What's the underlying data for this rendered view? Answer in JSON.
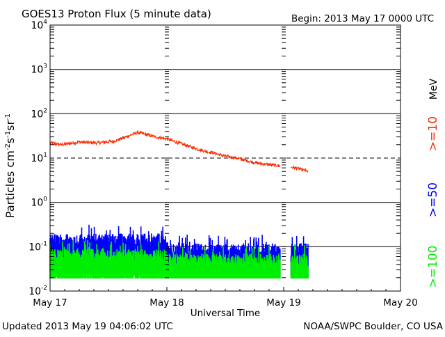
{
  "chart_data": {
    "type": "line",
    "title": "GOES13 Proton Flux (5 minute data)",
    "begin_label": "Begin: 2013 May 17 0000 UTC",
    "ylabel_html": "Particles cm⁻²s⁻¹sr⁻¹",
    "xlabel": "Universal Time",
    "footer_left": "Updated 2013 May 19 04:06:02 UTC",
    "footer_right": "NOAA/SWPC Boulder, CO USA",
    "mev_label": "MeV",
    "x_ticks": [
      "May 17",
      "May 18",
      "May 19",
      "May 20"
    ],
    "x_range_days": [
      0,
      3
    ],
    "y_log_range": [
      -2,
      4
    ],
    "y_ticks": [
      {
        "base": "10",
        "exp": "4"
      },
      {
        "base": "10",
        "exp": "3"
      },
      {
        "base": "10",
        "exp": "2"
      },
      {
        "base": "10",
        "exp": "1"
      },
      {
        "base": "10",
        "exp": "0"
      },
      {
        "base": "10",
        "exp": "-1"
      },
      {
        "base": "10",
        "exp": "-2"
      }
    ],
    "threshold_line": 10,
    "data_gap_days": [
      2.0,
      2.06
    ],
    "data_end_days": 2.21,
    "series": [
      {
        "name": ">=10",
        "color": "#ff2a00",
        "keypoints": [
          [
            0,
            22
          ],
          [
            0.1,
            20
          ],
          [
            0.25,
            23
          ],
          [
            0.4,
            22
          ],
          [
            0.55,
            24
          ],
          [
            0.65,
            30
          ],
          [
            0.75,
            38
          ],
          [
            0.9,
            30
          ],
          [
            1.0,
            27
          ],
          [
            1.1,
            22
          ],
          [
            1.2,
            18
          ],
          [
            1.3,
            15
          ],
          [
            1.4,
            13
          ],
          [
            1.5,
            11
          ],
          [
            1.6,
            10
          ],
          [
            1.7,
            8.5
          ],
          [
            1.8,
            7.5
          ],
          [
            1.9,
            7
          ],
          [
            2.0,
            6.5
          ],
          [
            2.1,
            6
          ],
          [
            2.21,
            5
          ]
        ],
        "noise": 0.035
      },
      {
        "name": ">=50",
        "color": "#0000ff",
        "base_early": 0.1,
        "base_late": 0.06,
        "drop_day": 1.0
      },
      {
        "name": ">=100",
        "color": "#00ee00",
        "base_early": 0.045,
        "base_late": 0.035,
        "drop_day": 1.0
      }
    ]
  }
}
